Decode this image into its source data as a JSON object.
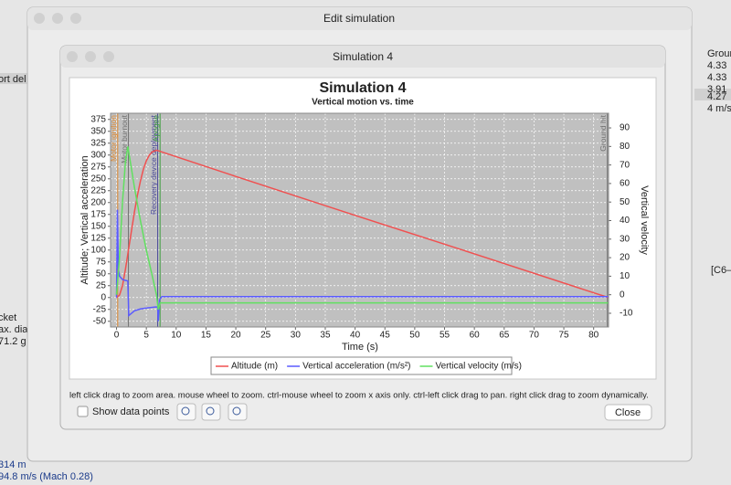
{
  "background": {
    "left_texts": [
      "ort del",
      "cket",
      "ax. diam",
      "71.2 g",
      "314 m",
      "94.8 m/s (Mach 0.28)"
    ],
    "right_texts": [
      "Groun",
      "4.33",
      "4.33",
      "3.91",
      "4.27",
      "4 m/s",
      "[C6–"
    ]
  },
  "edit_window": {
    "title": "Edit simulation"
  },
  "dialog": {
    "title": "Simulation 4",
    "instructions": "left click drag to zoom area. mouse wheel to zoom. ctrl-mouse wheel to zoom x axis only. ctrl-left click drag to pan.  right click drag to zoom dynamically.",
    "show_data_points": "Show data points",
    "close": "Close"
  },
  "chart_data": {
    "type": "line",
    "title": "Simulation 4",
    "subtitle": "Vertical motion vs. time",
    "xlabel": "Time (s)",
    "ylabel": "Altitude; Vertical acceleration",
    "y2label": "Vertical velocity",
    "xlim": [
      -1,
      82.5
    ],
    "ylim": [
      -62,
      388
    ],
    "y2lim": [
      -17.4,
      97.9
    ],
    "xticks": [
      0,
      5,
      10,
      15,
      20,
      25,
      30,
      35,
      40,
      45,
      50,
      55,
      60,
      65,
      70,
      75,
      80
    ],
    "yticks": [
      -50,
      -25,
      0,
      25,
      50,
      75,
      100,
      125,
      150,
      175,
      200,
      225,
      250,
      275,
      300,
      325,
      350,
      375
    ],
    "y2ticks": [
      -10,
      0,
      10,
      20,
      30,
      40,
      50,
      60,
      70,
      80,
      90
    ],
    "grid": true,
    "series": [
      {
        "name": "Altitude (m)",
        "color": "#f05050",
        "axis": "y",
        "x": [
          0,
          0.5,
          1,
          1.5,
          2,
          2.5,
          3,
          3.5,
          4,
          4.5,
          5,
          5.5,
          6,
          6.7,
          7,
          20,
          40,
          60,
          80,
          82.5
        ],
        "values": [
          0,
          5,
          25,
          60,
          100,
          140,
          180,
          215,
          245,
          270,
          288,
          300,
          307,
          310,
          309,
          255,
          173,
          92,
          10,
          0
        ]
      },
      {
        "name": "Vertical acceleration (m/s²)",
        "color": "#5a5aff",
        "axis": "y",
        "x": [
          0,
          0.15,
          0.3,
          0.5,
          1,
          1.5,
          1.9,
          2.05,
          3,
          4,
          5,
          6.5,
          6.9,
          7,
          7.2,
          7.6,
          82.5
        ],
        "values": [
          0,
          185,
          60,
          45,
          38,
          36,
          35,
          -38,
          -28,
          -24,
          -22,
          -20,
          -20,
          -50,
          -5,
          2,
          2
        ]
      },
      {
        "name": "Vertical velocity (m/s)",
        "color": "#60e060",
        "axis": "y2",
        "x": [
          0,
          0.5,
          1,
          1.5,
          1.9,
          2.5,
          3,
          4,
          5,
          6,
          6.7,
          7,
          7.3,
          82.5
        ],
        "values": [
          0,
          20,
          50,
          72,
          80,
          68,
          58,
          40,
          24,
          10,
          0,
          -8,
          -4.4,
          -4.4
        ]
      }
    ],
    "events": [
      {
        "label": "Motor ignition",
        "x": 0.2,
        "color": "#e08a30"
      },
      {
        "label": "Motor burnout",
        "x": 2,
        "color": "#707070"
      },
      {
        "label": "Recovery device deployment",
        "x": 6.9,
        "color": "#4a4a9a"
      },
      {
        "label": "Apogee",
        "x": 7.3,
        "color": "#40a040"
      },
      {
        "label": "Ground hit",
        "x": 82.3,
        "color": "#707070"
      }
    ]
  }
}
